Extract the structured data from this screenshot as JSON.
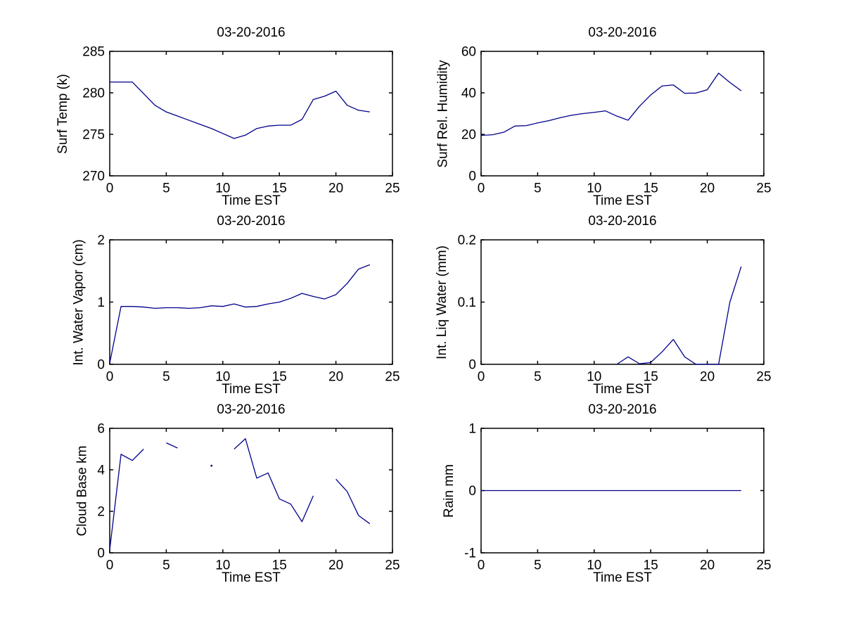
{
  "figure": {
    "background": "#ffffff",
    "axis_color": "#000000",
    "line_color": "#00008B",
    "date_title": "03-20-2016"
  },
  "chart_data": [
    {
      "id": "surf-temp",
      "type": "line",
      "title": "03-20-2016",
      "ylabel": "Surf Temp (k)",
      "xlabel": "Time EST",
      "xlim": [
        0,
        25
      ],
      "ylim": [
        270,
        285
      ],
      "xticks": [
        "0",
        "5",
        "10",
        "15",
        "20",
        "25"
      ],
      "yticks": [
        "270",
        "275",
        "280",
        "285"
      ],
      "grid": false,
      "x": [
        0,
        1,
        2,
        3,
        4,
        5,
        6,
        7,
        8,
        9,
        10,
        11,
        12,
        13,
        14,
        15,
        16,
        17,
        18,
        19,
        20,
        21,
        22,
        23
      ],
      "y": [
        281.3,
        281.3,
        281.3,
        279.9,
        278.5,
        277.7,
        277.2,
        276.7,
        276.2,
        275.7,
        275.1,
        274.5,
        274.9,
        275.7,
        276.0,
        276.1,
        276.1,
        276.8,
        279.2,
        279.6,
        280.2,
        278.5,
        277.9,
        277.7
      ]
    },
    {
      "id": "surf-rel-humidity",
      "type": "line",
      "title": "03-20-2016",
      "ylabel": "Surf Rel. Humidity",
      "xlabel": "Time EST",
      "xlim": [
        0,
        25
      ],
      "ylim": [
        0,
        60
      ],
      "xticks": [
        "0",
        "5",
        "10",
        "15",
        "20",
        "25"
      ],
      "yticks": [
        "0",
        "20",
        "40",
        "60"
      ],
      "grid": false,
      "x": [
        0,
        1,
        2,
        3,
        4,
        5,
        6,
        7,
        8,
        9,
        10,
        11,
        12,
        13,
        14,
        15,
        16,
        17,
        18,
        19,
        20,
        21,
        22,
        23
      ],
      "y": [
        19.5,
        19.8,
        21.0,
        24.0,
        24.2,
        25.5,
        26.6,
        28.0,
        29.2,
        30.0,
        30.6,
        31.3,
        28.8,
        26.8,
        33.5,
        39.0,
        43.3,
        43.8,
        39.8,
        39.9,
        41.5,
        49.5,
        45.0,
        41.0
      ]
    },
    {
      "id": "int-water-vapor",
      "type": "line",
      "title": "03-20-2016",
      "ylabel": "Int. Water Vapor (cm)",
      "xlabel": "Time EST",
      "xlim": [
        0,
        25
      ],
      "ylim": [
        0,
        2
      ],
      "xticks": [
        "0",
        "5",
        "10",
        "15",
        "20",
        "25"
      ],
      "yticks": [
        "0",
        "1",
        "2"
      ],
      "grid": false,
      "x": [
        0,
        1,
        2,
        3,
        4,
        5,
        6,
        7,
        8,
        9,
        10,
        11,
        12,
        13,
        14,
        15,
        16,
        17,
        18,
        19,
        20,
        21,
        22,
        23
      ],
      "y": [
        0.02,
        0.93,
        0.93,
        0.92,
        0.9,
        0.91,
        0.91,
        0.9,
        0.91,
        0.94,
        0.93,
        0.97,
        0.92,
        0.93,
        0.97,
        1.0,
        1.06,
        1.14,
        1.09,
        1.05,
        1.12,
        1.3,
        1.53,
        1.6
      ]
    },
    {
      "id": "int-liq-water",
      "type": "line",
      "title": "03-20-2016",
      "ylabel": "Int. Liq Water (mm)",
      "xlabel": "Time EST",
      "xlim": [
        0,
        25
      ],
      "ylim": [
        0,
        0.2
      ],
      "xticks": [
        "0",
        "5",
        "10",
        "15",
        "20",
        "25"
      ],
      "yticks": [
        "0",
        "0.1",
        "0.2"
      ],
      "grid": false,
      "x": [
        0,
        1,
        2,
        3,
        4,
        5,
        6,
        7,
        8,
        9,
        10,
        11,
        12,
        13,
        14,
        15,
        16,
        17,
        18,
        19,
        20,
        21,
        22,
        23
      ],
      "y": [
        null,
        null,
        null,
        null,
        null,
        null,
        null,
        null,
        null,
        null,
        null,
        null,
        0,
        0.012,
        0.001,
        0.003,
        0.02,
        0.04,
        0.012,
        0,
        0,
        0,
        0.1,
        0.157
      ]
    },
    {
      "id": "cloud-base",
      "type": "line",
      "title": "03-20-2016",
      "ylabel": "Cloud Base km",
      "xlabel": "Time EST",
      "xlim": [
        0,
        25
      ],
      "ylim": [
        0,
        6
      ],
      "xticks": [
        "0",
        "5",
        "10",
        "15",
        "20",
        "25"
      ],
      "yticks": [
        "0",
        "2",
        "4",
        "6"
      ],
      "grid": false,
      "x": [
        0,
        1,
        2,
        3,
        4,
        5,
        6,
        7,
        8,
        9,
        10,
        11,
        12,
        13,
        14,
        15,
        16,
        17,
        18,
        19,
        20,
        21,
        22,
        23
      ],
      "y": [
        0.15,
        4.75,
        4.45,
        5.0,
        null,
        5.3,
        5.05,
        null,
        null,
        4.2,
        null,
        5.0,
        5.5,
        3.6,
        3.85,
        2.6,
        2.35,
        1.5,
        2.75,
        null,
        3.55,
        2.95,
        1.8,
        1.4
      ]
    },
    {
      "id": "rain",
      "type": "line",
      "title": "03-20-2016",
      "ylabel": "Rain mm",
      "xlabel": "Time EST",
      "xlim": [
        0,
        25
      ],
      "ylim": [
        -1,
        1
      ],
      "xticks": [
        "0",
        "5",
        "10",
        "15",
        "20",
        "25"
      ],
      "yticks": [
        "-1",
        "0",
        "1"
      ],
      "grid": false,
      "x": [
        0,
        1,
        2,
        3,
        4,
        5,
        6,
        7,
        8,
        9,
        10,
        11,
        12,
        13,
        14,
        15,
        16,
        17,
        18,
        19,
        20,
        21,
        22,
        23
      ],
      "y": [
        0,
        0,
        0,
        0,
        0,
        0,
        0,
        0,
        0,
        0,
        0,
        0,
        0,
        0,
        0,
        0,
        0,
        0,
        0,
        0,
        0,
        0,
        0,
        0
      ]
    }
  ]
}
